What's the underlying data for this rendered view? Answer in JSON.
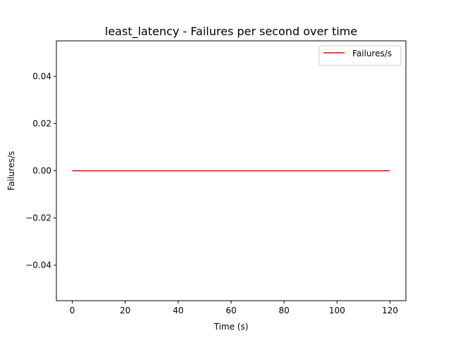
{
  "chart_data": {
    "type": "line",
    "title": "least_latency - Failures per second over time",
    "xlabel": "Time (s)",
    "ylabel": "Failures/s",
    "xlim": [
      -6,
      126
    ],
    "ylim": [
      -0.055,
      0.055
    ],
    "x_ticks": [
      0,
      20,
      40,
      60,
      80,
      100,
      120
    ],
    "x_tick_labels": [
      "0",
      "20",
      "40",
      "60",
      "80",
      "100",
      "120"
    ],
    "y_ticks": [
      -0.04,
      -0.02,
      0.0,
      0.02,
      0.04
    ],
    "y_tick_labels": [
      "−0.04",
      "−0.02",
      "0.00",
      "0.02",
      "0.04"
    ],
    "grid": false,
    "legend_position": "upper right",
    "series": [
      {
        "name": "Failures/s",
        "color": "#ff0000",
        "x": [
          0,
          120
        ],
        "y": [
          0,
          0
        ]
      }
    ]
  }
}
